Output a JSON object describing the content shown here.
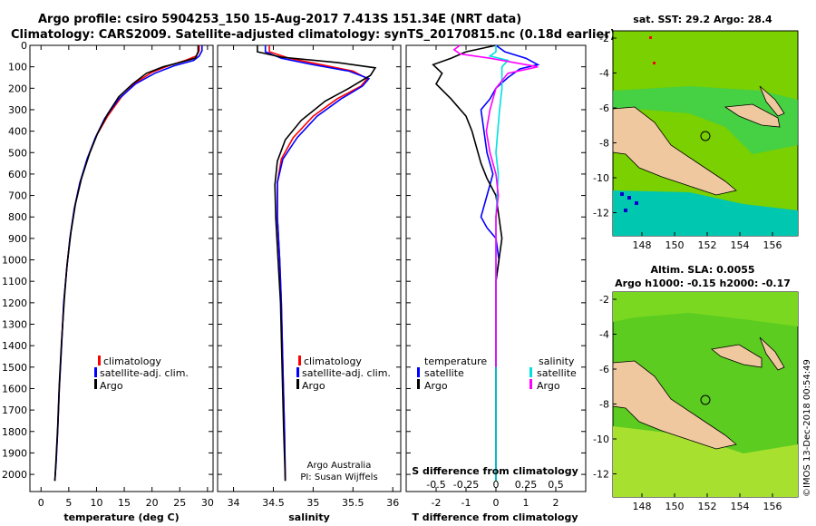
{
  "header": {
    "title_line1": "Argo profile: csiro 5904253_150 15-Aug-2017 7.413S 151.34E (NRT data)",
    "title_line2": "Climatology: CARS2009. Satellite-adjusted climatology: synTS_20170815.nc (0.18d earlier)"
  },
  "colors": {
    "climatology": "#ff0000",
    "satellite": "#0000ff",
    "argo": "#000000",
    "sal_satellite": "#00e0e0",
    "sal_argo": "#ff00ff",
    "land": "#f0c8a0",
    "ocean_high": "#80e000",
    "ocean_low": "#00c8a0"
  },
  "chart_data": [
    {
      "id": "temperature",
      "type": "line",
      "xlabel": "temperature (deg C)",
      "xlim": [
        -2,
        31
      ],
      "xticks": [
        "0",
        "5",
        "10",
        "15",
        "20",
        "25",
        "30"
      ],
      "ylim": [
        0,
        2080
      ],
      "yticks": [
        "0",
        "100",
        "200",
        "300",
        "400",
        "500",
        "600",
        "700",
        "800",
        "900",
        "1000",
        "1100",
        "1200",
        "1300",
        "1400",
        "1500",
        "1600",
        "1700",
        "1800",
        "1900",
        "2000"
      ],
      "legend": [
        "climatology",
        "satellite-adj. clim.",
        "Argo"
      ],
      "series": [
        {
          "name": "climatology",
          "points": [
            [
              28.5,
              0
            ],
            [
              28.5,
              25
            ],
            [
              28,
              50
            ],
            [
              26,
              70
            ],
            [
              23,
              95
            ],
            [
              20,
              125
            ],
            [
              17,
              175
            ],
            [
              14.5,
              240
            ],
            [
              12,
              330
            ],
            [
              10,
              420
            ],
            [
              8.5,
              520
            ],
            [
              7,
              640
            ],
            [
              6,
              760
            ],
            [
              5.2,
              900
            ],
            [
              4.6,
              1050
            ],
            [
              4.1,
              1200
            ],
            [
              3.7,
              1400
            ],
            [
              3.3,
              1600
            ],
            [
              3,
              1800
            ],
            [
              2.7,
              1950
            ],
            [
              2.5,
              2030
            ]
          ]
        },
        {
          "name": "satellite-adj. clim.",
          "points": [
            [
              29,
              0
            ],
            [
              29,
              25
            ],
            [
              28.5,
              50
            ],
            [
              27.5,
              70
            ],
            [
              24,
              95
            ],
            [
              20.5,
              130
            ],
            [
              17,
              180
            ],
            [
              14,
              250
            ],
            [
              11.5,
              340
            ],
            [
              9.8,
              430
            ],
            [
              8.3,
              530
            ],
            [
              7,
              640
            ],
            [
              6,
              760
            ],
            [
              5.2,
              900
            ],
            [
              4.6,
              1050
            ],
            [
              4.1,
              1200
            ],
            [
              3.7,
              1400
            ],
            [
              3.3,
              1600
            ],
            [
              3,
              1800
            ],
            [
              2.7,
              1950
            ],
            [
              2.5,
              2030
            ]
          ]
        },
        {
          "name": "Argo",
          "points": [
            [
              28.3,
              0
            ],
            [
              28.3,
              30
            ],
            [
              27.8,
              60
            ],
            [
              25,
              80
            ],
            [
              22,
              100
            ],
            [
              19,
              130
            ],
            [
              16.5,
              180
            ],
            [
              14,
              240
            ],
            [
              12,
              320
            ],
            [
              10.2,
              410
            ],
            [
              8.8,
              500
            ],
            [
              7.3,
              620
            ],
            [
              6.2,
              740
            ],
            [
              5.4,
              870
            ],
            [
              4.7,
              1020
            ],
            [
              4.2,
              1180
            ],
            [
              3.7,
              1380
            ],
            [
              3.3,
              1580
            ],
            [
              3,
              1780
            ],
            [
              2.7,
              1930
            ],
            [
              2.5,
              2030
            ]
          ]
        }
      ]
    },
    {
      "id": "salinity",
      "type": "line",
      "xlabel": "salinity",
      "xlim": [
        33.8,
        36.1
      ],
      "xticks": [
        "34",
        "34.5",
        "35",
        "35.5",
        "36"
      ],
      "ylim": [
        0,
        2080
      ],
      "legend": [
        "climatology",
        "satellite-adj. clim.",
        "Argo"
      ],
      "credit": [
        "Argo Australia",
        "PI: Susan Wijffels"
      ],
      "series": [
        {
          "name": "climatology",
          "points": [
            [
              34.45,
              0
            ],
            [
              34.45,
              30
            ],
            [
              34.7,
              60
            ],
            [
              35.1,
              90
            ],
            [
              35.5,
              120
            ],
            [
              35.68,
              155
            ],
            [
              35.6,
              190
            ],
            [
              35.3,
              250
            ],
            [
              35,
              330
            ],
            [
              34.75,
              430
            ],
            [
              34.6,
              530
            ],
            [
              34.55,
              640
            ],
            [
              34.55,
              800
            ],
            [
              34.58,
              1000
            ],
            [
              34.6,
              1200
            ],
            [
              34.62,
              1500
            ],
            [
              34.64,
              1800
            ],
            [
              34.65,
              2030
            ]
          ]
        },
        {
          "name": "satellite-adj. clim.",
          "points": [
            [
              34.4,
              0
            ],
            [
              34.4,
              30
            ],
            [
              34.6,
              60
            ],
            [
              35,
              90
            ],
            [
              35.45,
              120
            ],
            [
              35.7,
              155
            ],
            [
              35.62,
              190
            ],
            [
              35.35,
              250
            ],
            [
              35.05,
              330
            ],
            [
              34.8,
              430
            ],
            [
              34.62,
              530
            ],
            [
              34.55,
              640
            ],
            [
              34.55,
              800
            ],
            [
              34.58,
              1000
            ],
            [
              34.6,
              1200
            ],
            [
              34.62,
              1500
            ],
            [
              34.64,
              1800
            ],
            [
              34.65,
              2030
            ]
          ]
        },
        {
          "name": "Argo",
          "points": [
            [
              34.3,
              0
            ],
            [
              34.3,
              30
            ],
            [
              34.6,
              55
            ],
            [
              35.3,
              80
            ],
            [
              35.78,
              105
            ],
            [
              35.72,
              140
            ],
            [
              35.45,
              200
            ],
            [
              35.15,
              260
            ],
            [
              34.85,
              350
            ],
            [
              34.65,
              440
            ],
            [
              34.55,
              540
            ],
            [
              34.52,
              650
            ],
            [
              34.53,
              800
            ],
            [
              34.56,
              1000
            ],
            [
              34.59,
              1200
            ],
            [
              34.61,
              1500
            ],
            [
              34.63,
              1800
            ],
            [
              34.65,
              2030
            ]
          ]
        }
      ]
    },
    {
      "id": "difference",
      "type": "line",
      "xlabel": "T difference from climatology",
      "xlabel_top": "S difference from climatology",
      "xlim": [
        -3,
        3
      ],
      "xticks": [
        "-2",
        "-1",
        "0",
        "1",
        "2"
      ],
      "xticks_top": [
        "-0.5",
        "-0.25",
        "0",
        "0.25",
        "0.5"
      ],
      "ylim": [
        0,
        2080
      ],
      "legend_left_title": "temperature",
      "legend_left": [
        "satellite",
        "Argo"
      ],
      "legend_right_title": "salinity",
      "legend_right": [
        "satellite",
        "Argo"
      ],
      "series": [
        {
          "name": "T satellite",
          "points": [
            [
              0,
              0
            ],
            [
              0.3,
              30
            ],
            [
              1,
              60
            ],
            [
              1.4,
              90
            ],
            [
              0.8,
              110
            ],
            [
              0.4,
              150
            ],
            [
              0,
              200
            ],
            [
              -0.2,
              250
            ],
            [
              -0.5,
              300
            ],
            [
              -0.4,
              400
            ],
            [
              -0.3,
              500
            ],
            [
              -0.1,
              600
            ],
            [
              -0.3,
              700
            ],
            [
              -0.5,
              800
            ],
            [
              -0.3,
              850
            ],
            [
              0,
              900
            ],
            [
              0.1,
              1000
            ],
            [
              0,
              1100
            ],
            [
              0,
              1500
            ],
            [
              0,
              1800
            ],
            [
              0,
              2030
            ]
          ]
        },
        {
          "name": "T Argo",
          "points": [
            [
              0,
              0
            ],
            [
              -1,
              30
            ],
            [
              -1.5,
              60
            ],
            [
              -2.1,
              90
            ],
            [
              -1.8,
              130
            ],
            [
              -2,
              180
            ],
            [
              -1.5,
              250
            ],
            [
              -1,
              330
            ],
            [
              -0.8,
              400
            ],
            [
              -0.6,
              500
            ],
            [
              -0.5,
              550
            ],
            [
              -0.3,
              620
            ],
            [
              0,
              700
            ],
            [
              0.1,
              800
            ],
            [
              0.2,
              900
            ],
            [
              0.1,
              1000
            ],
            [
              0,
              1100
            ],
            [
              0,
              1500
            ],
            [
              0,
              1800
            ],
            [
              0,
              2030
            ]
          ]
        },
        {
          "name": "S satellite",
          "points": [
            [
              0,
              0
            ],
            [
              0,
              30
            ],
            [
              -0.05,
              50
            ],
            [
              0.1,
              70
            ],
            [
              0.05,
              100
            ],
            [
              0.05,
              200
            ],
            [
              0.03,
              300
            ],
            [
              0,
              500
            ],
            [
              0.02,
              600
            ],
            [
              0.01,
              700
            ],
            [
              0,
              800
            ],
            [
              0,
              1200
            ],
            [
              0,
              1600
            ],
            [
              0,
              1900
            ],
            [
              0,
              2030
            ]
          ]
        },
        {
          "name": "S Argo",
          "points": [
            [
              -0.3,
              0
            ],
            [
              -0.35,
              20
            ],
            [
              -0.3,
              40
            ],
            [
              -0.05,
              60
            ],
            [
              0.15,
              80
            ],
            [
              0.35,
              100
            ],
            [
              0.1,
              130
            ],
            [
              0,
              200
            ],
            [
              -0.05,
              300
            ],
            [
              -0.08,
              400
            ],
            [
              -0.05,
              500
            ],
            [
              0,
              600
            ],
            [
              0.02,
              700
            ],
            [
              0,
              800
            ],
            [
              0,
              1200
            ],
            [
              0,
              1500
            ]
          ]
        }
      ]
    }
  ],
  "maps": {
    "sst": {
      "title": "sat. SST: 29.2 Argo: 28.4",
      "xticks": [
        "148",
        "150",
        "152",
        "154",
        "156"
      ],
      "yticks": [
        "-2",
        "-4",
        "-6",
        "-8",
        "-10",
        "-12"
      ]
    },
    "sla": {
      "title_line1": "Altim. SLA: 0.0055",
      "title_line2": "Argo h1000: -0.15 h2000: -0.17",
      "xticks": [
        "148",
        "150",
        "152",
        "154",
        "156"
      ],
      "yticks": [
        "-2",
        "-4",
        "-6",
        "-8",
        "-10",
        "-12"
      ]
    }
  },
  "stamp": "©IMOS 13-Dec-2018 00:54:49"
}
